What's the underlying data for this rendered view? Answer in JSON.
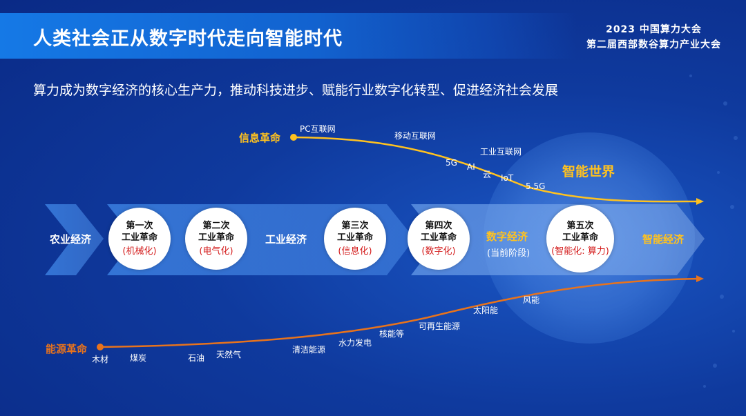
{
  "header": {
    "title": "人类社会正从数字时代走向智能时代",
    "event_line1": "2023 中国算力大会",
    "event_line2": "第二届西部数谷算力产业大会"
  },
  "subtitle": "算力成为数字经济的核心生产力，推动科技进步、赋能行业数字化转型、促进经济社会发展",
  "colors": {
    "info": "#ffc21f",
    "energy": "#e8731c",
    "highlight": "#ffc21f",
    "red": "#d41c1c"
  },
  "info_revolution": {
    "label": "信息革命",
    "items": [
      "PC互联网",
      "移动互联网",
      "工业互联网",
      "5G",
      "AI",
      "云",
      "IoT",
      "5.5G"
    ]
  },
  "energy_revolution": {
    "label": "能源革命",
    "items": [
      "木材",
      "煤炭",
      "石油",
      "天然气",
      "清洁能源",
      "水力发电",
      "核能等",
      "可再生能源",
      "太阳能",
      "风能"
    ]
  },
  "smart_world": "智能世界",
  "stages": {
    "agri": "农业经济",
    "industry": "工业经济",
    "digital": "数字经济",
    "digital_note": "(当前阶段)",
    "smart": "智能经济"
  },
  "revolutions": [
    {
      "name1": "第一次",
      "name2": "工业革命",
      "sub": "(机械化)"
    },
    {
      "name1": "第二次",
      "name2": "工业革命",
      "sub": "(电气化)"
    },
    {
      "name1": "第三次",
      "name2": "工业革命",
      "sub": "(信息化)"
    },
    {
      "name1": "第四次",
      "name2": "工业革命",
      "sub": "(数字化)"
    },
    {
      "name1": "第五次",
      "name2": "工业革命",
      "sub": "(智能化: 算力)"
    }
  ]
}
